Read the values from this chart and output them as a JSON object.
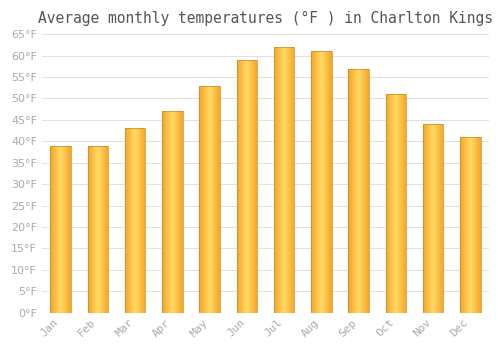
{
  "title": "Average monthly temperatures (°F ) in Charlton Kings",
  "months": [
    "Jan",
    "Feb",
    "Mar",
    "Apr",
    "May",
    "Jun",
    "Jul",
    "Aug",
    "Sep",
    "Oct",
    "Nov",
    "Dec"
  ],
  "values": [
    39,
    39,
    43,
    47,
    53,
    59,
    62,
    61,
    57,
    51,
    44,
    41
  ],
  "bar_color_center": "#FFD966",
  "bar_color_edge": "#F5A623",
  "bar_border_color": "#B8860B",
  "ylim": [
    0,
    65
  ],
  "yticks": [
    0,
    5,
    10,
    15,
    20,
    25,
    30,
    35,
    40,
    45,
    50,
    55,
    60,
    65
  ],
  "background_color": "#FFFFFF",
  "grid_color": "#E0E0E0",
  "title_fontsize": 10.5,
  "tick_fontsize": 8,
  "tick_label_color": "#AAAAAA",
  "title_color": "#555555",
  "bar_width": 0.55
}
